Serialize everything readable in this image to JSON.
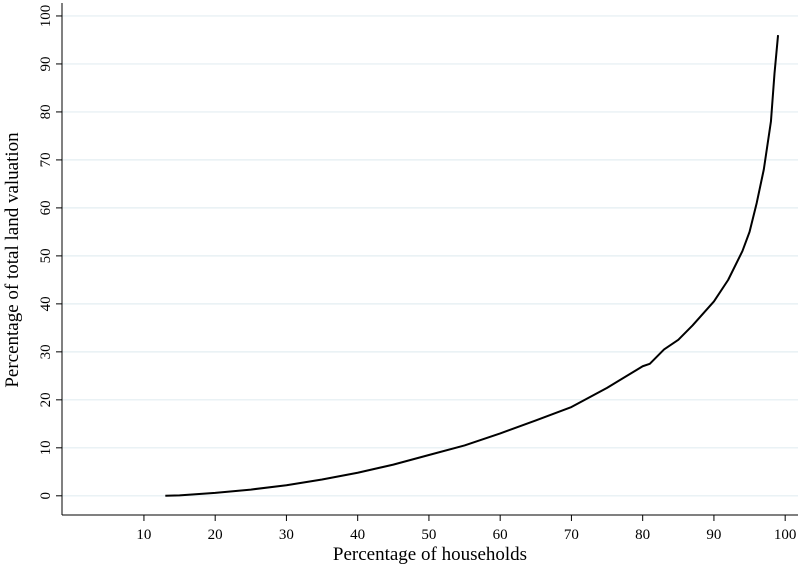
{
  "chart_data": {
    "type": "line",
    "x_label": "Percentage of households",
    "y_label": "Percentage of total land valuation",
    "x": [
      13,
      15,
      20,
      25,
      30,
      35,
      40,
      45,
      50,
      55,
      60,
      65,
      70,
      75,
      80,
      81,
      83,
      85,
      87,
      90,
      92,
      94,
      95,
      96,
      97,
      98,
      98.5,
      99
    ],
    "values": [
      0,
      0.1,
      0.6,
      1.3,
      2.2,
      3.4,
      4.8,
      6.5,
      8.5,
      10.5,
      13,
      15.7,
      18.5,
      22.5,
      27,
      27.5,
      30.5,
      32.5,
      35.5,
      40.5,
      45,
      51,
      55,
      61,
      68,
      78,
      88,
      96
    ],
    "color": "#000000",
    "xlim": [
      -1.5,
      101.8
    ],
    "ylim": [
      -4,
      102.7
    ],
    "xticks": [
      10,
      20,
      30,
      40,
      50,
      60,
      70,
      80,
      90,
      100
    ],
    "yticks": [
      0,
      10,
      20,
      30,
      40,
      50,
      60,
      70,
      80,
      90,
      100
    ],
    "grid": true
  }
}
